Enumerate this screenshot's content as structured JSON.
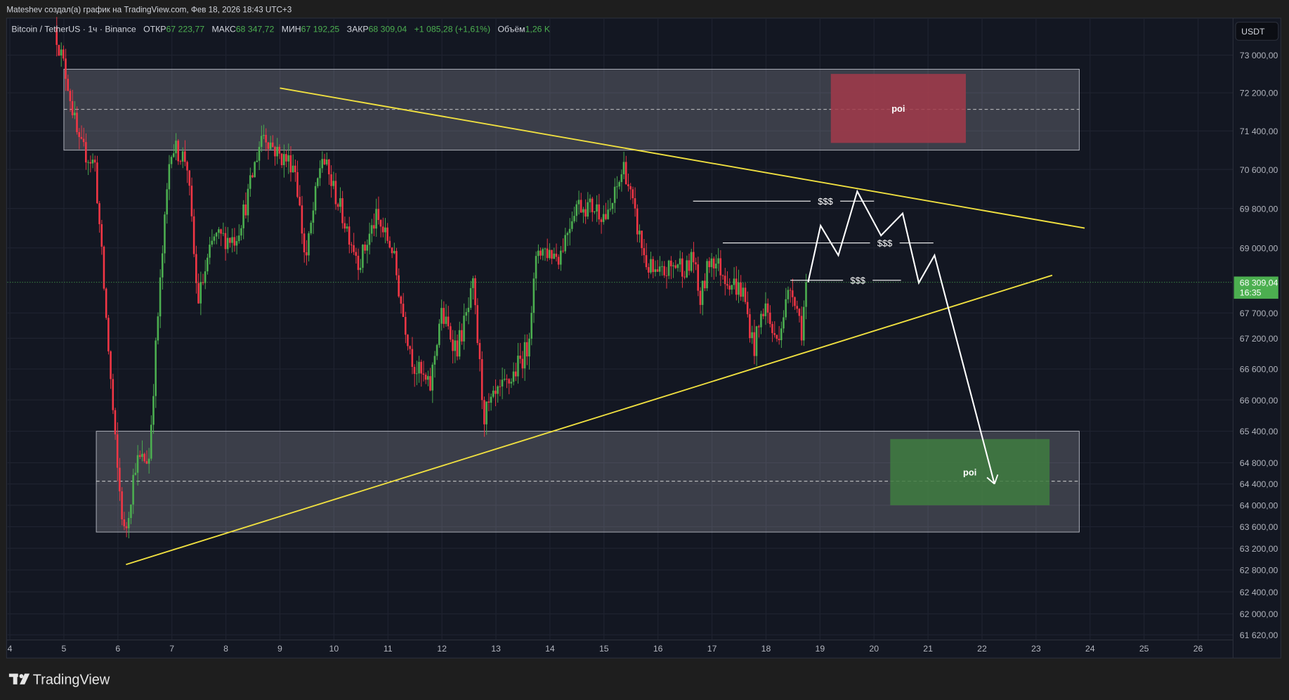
{
  "caption": "Mateshev создал(а) график на TradingView.com, Фев 18, 2026 18:43 UTC+3",
  "legend": {
    "symbol": "Bitcoin / TetherUS · 1ч · Binance",
    "open_label": "ОТКР",
    "open": "67 223,77",
    "high_label": "МАКС",
    "high": "68 347,72",
    "low_label": "МИН",
    "low": "67 192,25",
    "close_label": "ЗАКР",
    "close": "68 309,04",
    "change": "+1 085,28 (+1,61%)",
    "volume_label": "Объём",
    "volume": "1,26 K"
  },
  "currency_button": "USDT",
  "last_price": {
    "value": 68309.04,
    "label": "68 309,04",
    "countdown": "16:35"
  },
  "logo": "TradingView",
  "colors": {
    "up": "#4caf50",
    "down": "#f23645",
    "trendline": "#f0e040",
    "zone": "#b2b5be",
    "poi_sell": "#a33a4a",
    "poi_buy": "#3f7d3f",
    "background": "#131722"
  },
  "chart_data": {
    "type": "candlestick",
    "timeframe": "1h",
    "y_scale": "log",
    "ylim": [
      61620,
      73600
    ],
    "xlim": [
      4,
      27.5
    ],
    "grid": true,
    "y_ticks": [
      73000,
      72200,
      71400,
      70600,
      69800,
      69000,
      67700,
      67200,
      66600,
      66000,
      65400,
      64800,
      64400,
      64000,
      63600,
      63200,
      62800,
      62400,
      62000,
      61620
    ],
    "y_tick_labels": [
      "73 000,00",
      "72 200,00",
      "71 400,00",
      "70 600,00",
      "69 800,00",
      "69 000,00",
      "67 700,00",
      "67 200,00",
      "66 600,00",
      "66 000,00",
      "65 400,00",
      "64 800,00",
      "64 400,00",
      "64 000,00",
      "63 600,00",
      "63 200,00",
      "62 800,00",
      "62 400,00",
      "62 000,00",
      "61 620,00"
    ],
    "x_ticks": [
      4,
      5,
      6,
      7,
      8,
      9,
      10,
      11,
      12,
      13,
      14,
      15,
      16,
      17,
      18,
      19,
      20,
      21,
      22,
      23,
      24,
      25,
      26
    ],
    "x_tick_labels": [
      "4",
      "5",
      "6",
      "7",
      "8",
      "9",
      "10",
      "11",
      "12",
      "13",
      "14",
      "15",
      "16",
      "17",
      "18",
      "19",
      "20",
      "21",
      "22",
      "23",
      "24",
      "25",
      "26"
    ],
    "price_path": [
      [
        4.85,
        73600
      ],
      [
        5.1,
        72400
      ],
      [
        5.3,
        71100
      ],
      [
        5.6,
        70700
      ],
      [
        5.8,
        67700
      ],
      [
        6.0,
        64800
      ],
      [
        6.15,
        63400
      ],
      [
        6.35,
        64800
      ],
      [
        6.6,
        64900
      ],
      [
        6.75,
        67400
      ],
      [
        7.0,
        71100
      ],
      [
        7.3,
        70800
      ],
      [
        7.5,
        67900
      ],
      [
        7.8,
        69200
      ],
      [
        8.2,
        69200
      ],
      [
        8.4,
        69900
      ],
      [
        8.7,
        71400
      ],
      [
        9.0,
        70900
      ],
      [
        9.3,
        70700
      ],
      [
        9.5,
        68700
      ],
      [
        9.8,
        70900
      ],
      [
        10.2,
        69600
      ],
      [
        10.5,
        68700
      ],
      [
        10.8,
        69600
      ],
      [
        11.1,
        69000
      ],
      [
        11.3,
        67700
      ],
      [
        11.5,
        66700
      ],
      [
        11.8,
        66200
      ],
      [
        12.0,
        67700
      ],
      [
        12.3,
        67000
      ],
      [
        12.5,
        67700
      ],
      [
        12.6,
        68200
      ],
      [
        12.8,
        65700
      ],
      [
        13.0,
        66000
      ],
      [
        13.3,
        66400
      ],
      [
        13.6,
        67000
      ],
      [
        13.8,
        69000
      ],
      [
        14.2,
        68850
      ],
      [
        14.5,
        69900
      ],
      [
        14.9,
        69800
      ],
      [
        15.1,
        69600
      ],
      [
        15.4,
        70700
      ],
      [
        15.6,
        69600
      ],
      [
        15.8,
        68700
      ],
      [
        16.0,
        68400
      ],
      [
        16.4,
        68700
      ],
      [
        16.6,
        68550
      ],
      [
        16.65,
        69000
      ],
      [
        16.8,
        67900
      ],
      [
        17.0,
        68850
      ],
      [
        17.3,
        68400
      ],
      [
        17.6,
        68100
      ],
      [
        17.8,
        67000
      ],
      [
        18.0,
        67900
      ],
      [
        18.2,
        67100
      ],
      [
        18.5,
        68300
      ],
      [
        18.7,
        67300
      ],
      [
        18.75,
        68309
      ]
    ],
    "zones": [
      {
        "from": 5.0,
        "to": 23.8,
        "top": 72700,
        "bottom": 71000,
        "mid": 71850
      },
      {
        "from": 5.6,
        "to": 23.8,
        "top": 65400,
        "bottom": 63500,
        "mid": 64450
      }
    ],
    "poi_boxes": [
      {
        "label": "poi",
        "from": 19.2,
        "to": 21.7,
        "top": 72600,
        "bottom": 71150,
        "kind": "sell"
      },
      {
        "label": "poi",
        "from": 20.3,
        "to": 23.25,
        "top": 65250,
        "bottom": 64000,
        "kind": "buy"
      }
    ],
    "trendlines": [
      {
        "from": [
          9.0,
          72300
        ],
        "to": [
          23.9,
          69400
        ]
      },
      {
        "from": [
          6.15,
          62900
        ],
        "to": [
          23.3,
          68450
        ]
      }
    ],
    "liquidity_levels": [
      {
        "label": "$$$",
        "from": 16.65,
        "to": 20.0,
        "price": 69950,
        "label_at": 19.1
      },
      {
        "label": "$$$",
        "from": 17.2,
        "to": 21.1,
        "price": 69100,
        "label_at": 20.2
      },
      {
        "label": "$$$",
        "from": 18.45,
        "to": 20.5,
        "price": 68350,
        "label_at": 19.7
      }
    ],
    "projection": [
      [
        18.78,
        68309
      ],
      [
        19.01,
        69450
      ],
      [
        19.34,
        68850
      ],
      [
        19.69,
        70150
      ],
      [
        20.13,
        69250
      ],
      [
        20.53,
        69700
      ],
      [
        20.83,
        68300
      ],
      [
        21.12,
        68850
      ],
      [
        22.23,
        64400
      ]
    ]
  }
}
